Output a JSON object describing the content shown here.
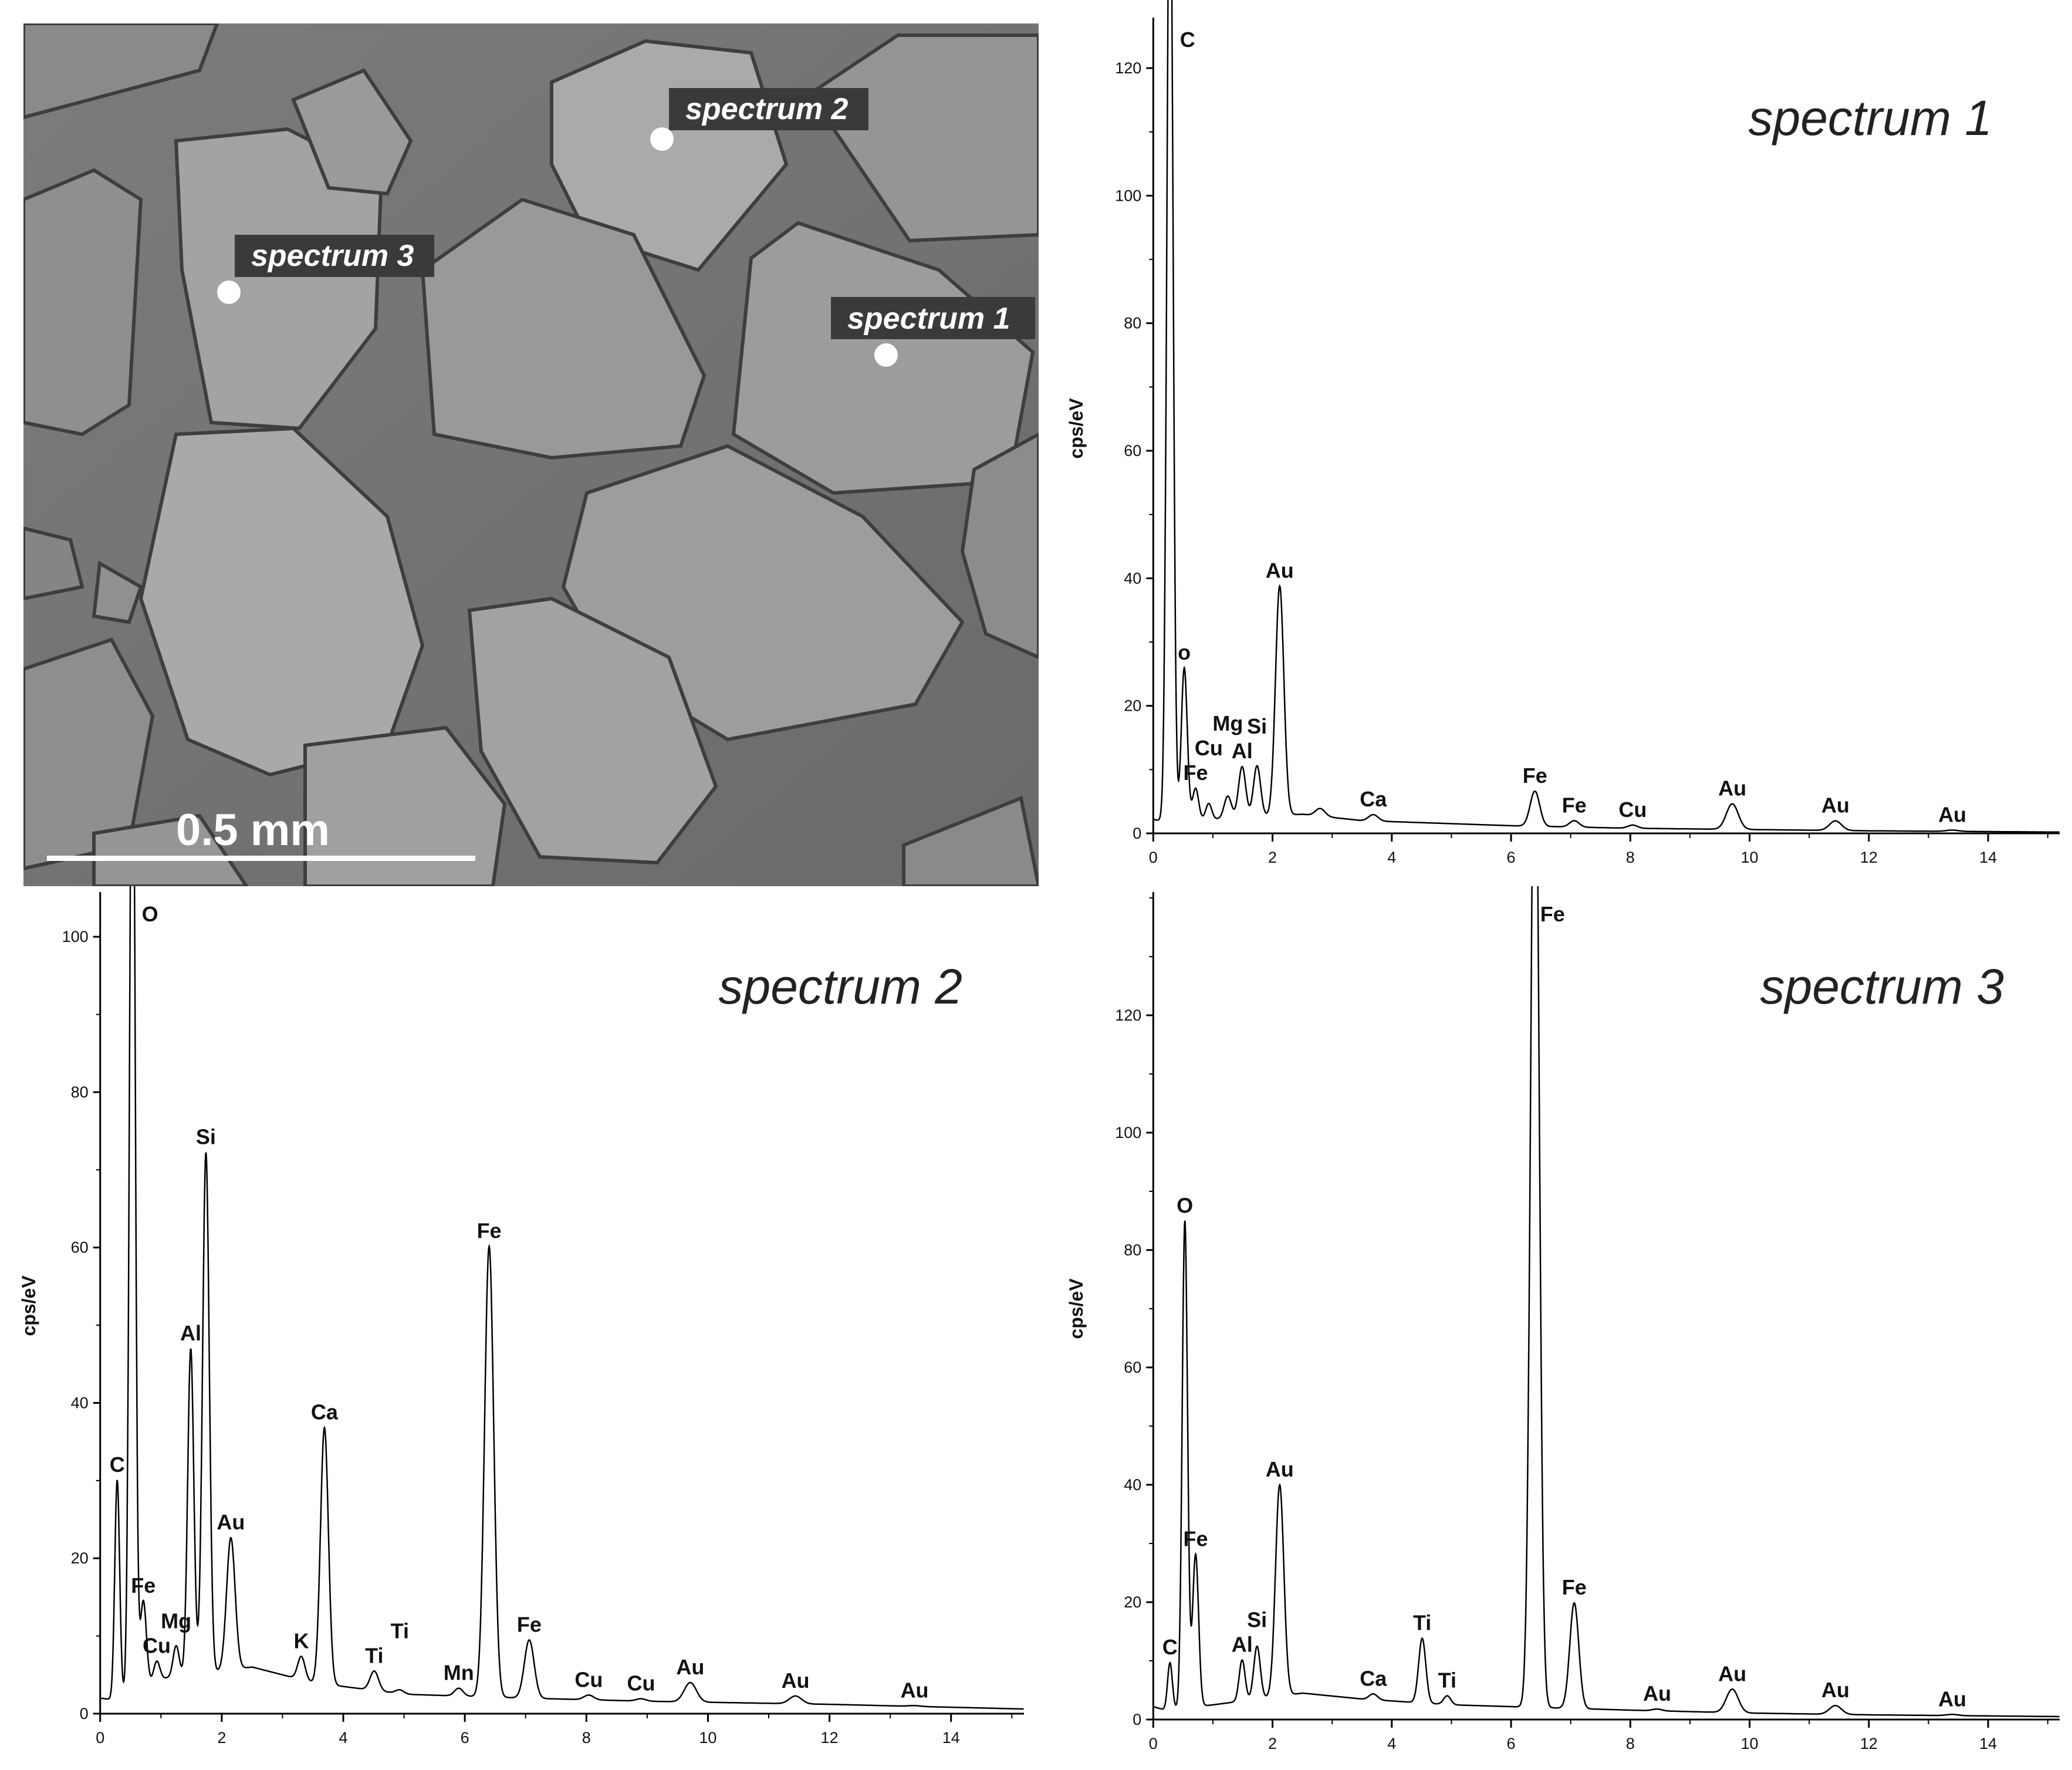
{
  "sem": {
    "scale_bar_label": "0.5 mm",
    "spots": [
      {
        "label": "spectrum 2"
      },
      {
        "label": "spectrum 3"
      },
      {
        "label": "spectrum 1"
      }
    ]
  },
  "chart_data": [
    {
      "type": "line",
      "title": "spectrum 1",
      "xlabel": "",
      "ylabel": "cps/eV",
      "xlim": [
        -0.2,
        15.2
      ],
      "ylim": [
        0,
        127
      ],
      "xticks": [
        0,
        2,
        4,
        6,
        8,
        10,
        12,
        14
      ],
      "yticks": [
        0,
        20,
        40,
        60,
        80,
        100,
        120
      ],
      "baseline": [
        [
          0.0,
          2.2
        ],
        [
          0.2,
          1.8
        ],
        [
          2.5,
          3.0
        ],
        [
          3.5,
          2.0
        ],
        [
          6,
          1.2
        ],
        [
          8,
          0.8
        ],
        [
          10,
          0.6
        ],
        [
          12,
          0.4
        ],
        [
          15.2,
          0.2
        ]
      ],
      "peaks": [
        {
          "x": 0.28,
          "y": 160,
          "w": 0.05,
          "label": "C"
        },
        {
          "x": 0.52,
          "y": 24,
          "w": 0.05,
          "label": "o"
        },
        {
          "x": 0.71,
          "y": 5,
          "w": 0.05,
          "label": "Fe"
        },
        {
          "x": 0.93,
          "y": 2.5,
          "w": 0.05,
          "label": "Cu"
        },
        {
          "x": 1.25,
          "y": 3.5,
          "w": 0.06,
          "label": "Mg"
        },
        {
          "x": 1.49,
          "y": 8,
          "w": 0.06,
          "label": "Al"
        },
        {
          "x": 1.74,
          "y": 8,
          "w": 0.06,
          "label": "Si"
        },
        {
          "x": 2.12,
          "y": 36,
          "w": 0.07,
          "label": "Au"
        },
        {
          "x": 2.8,
          "y": 1.2,
          "w": 0.08,
          "label": ""
        },
        {
          "x": 3.69,
          "y": 1.0,
          "w": 0.08,
          "label": "Ca"
        },
        {
          "x": 6.4,
          "y": 5.5,
          "w": 0.08,
          "label": "Fe"
        },
        {
          "x": 7.06,
          "y": 1.0,
          "w": 0.08,
          "label": "Fe"
        },
        {
          "x": 8.04,
          "y": 0.5,
          "w": 0.08,
          "label": "Cu"
        },
        {
          "x": 9.71,
          "y": 4,
          "w": 0.1,
          "label": "Au"
        },
        {
          "x": 11.44,
          "y": 1.5,
          "w": 0.1,
          "label": "Au"
        },
        {
          "x": 13.4,
          "y": 0.2,
          "w": 0.1,
          "label": "Au"
        }
      ]
    },
    {
      "type": "line",
      "title": "spectrum 2",
      "xlabel": "",
      "ylabel": "cps/eV",
      "xlim": [
        -0.2,
        15.2
      ],
      "ylim": [
        0,
        105
      ],
      "xticks": [
        0,
        2,
        4,
        6,
        8,
        10,
        12,
        14
      ],
      "yticks": [
        0,
        20,
        40,
        60,
        80,
        100
      ],
      "baseline": [
        [
          0.0,
          2.0
        ],
        [
          0.2,
          1.8
        ],
        [
          1.0,
          4.5
        ],
        [
          2.5,
          6.0
        ],
        [
          3.5,
          4.0
        ],
        [
          5,
          2.5
        ],
        [
          7,
          2.0
        ],
        [
          9,
          1.6
        ],
        [
          12,
          1.2
        ],
        [
          15.2,
          0.6
        ]
      ],
      "peaks": [
        {
          "x": 0.28,
          "y": 28,
          "w": 0.04,
          "label": "C"
        },
        {
          "x": 0.53,
          "y": 140,
          "w": 0.045,
          "label": "O"
        },
        {
          "x": 0.71,
          "y": 11,
          "w": 0.05,
          "label": "Fe"
        },
        {
          "x": 0.93,
          "y": 2.5,
          "w": 0.05,
          "label": "Cu"
        },
        {
          "x": 1.25,
          "y": 4,
          "w": 0.05,
          "label": "Mg"
        },
        {
          "x": 1.49,
          "y": 42,
          "w": 0.05,
          "label": "Al"
        },
        {
          "x": 1.74,
          "y": 67,
          "w": 0.055,
          "label": "Si"
        },
        {
          "x": 2.15,
          "y": 17,
          "w": 0.07,
          "label": "Au"
        },
        {
          "x": 3.31,
          "y": 3,
          "w": 0.06,
          "label": "K"
        },
        {
          "x": 3.69,
          "y": 33,
          "w": 0.065,
          "label": "Ca"
        },
        {
          "x": 4.51,
          "y": 2.5,
          "w": 0.07,
          "label": "Ti"
        },
        {
          "x": 4.93,
          "y": 0.5,
          "w": 0.07,
          "label": "Ti"
        },
        {
          "x": 5.9,
          "y": 1.0,
          "w": 0.07,
          "label": "Mn"
        },
        {
          "x": 6.4,
          "y": 58,
          "w": 0.075,
          "label": "Fe"
        },
        {
          "x": 7.06,
          "y": 7.5,
          "w": 0.08,
          "label": "Fe"
        },
        {
          "x": 8.04,
          "y": 0.6,
          "w": 0.08,
          "label": "Cu"
        },
        {
          "x": 8.9,
          "y": 0.3,
          "w": 0.08,
          "label": "Cu"
        },
        {
          "x": 9.71,
          "y": 2.5,
          "w": 0.1,
          "label": "Au"
        },
        {
          "x": 11.44,
          "y": 1.0,
          "w": 0.1,
          "label": "Au"
        },
        {
          "x": 13.4,
          "y": 0.1,
          "w": 0.1,
          "label": "Au"
        }
      ]
    },
    {
      "type": "line",
      "title": "spectrum 3",
      "xlabel": "",
      "ylabel": "cps/eV",
      "xlim": [
        -0.2,
        15.2
      ],
      "ylim": [
        0,
        140
      ],
      "xticks": [
        0,
        2,
        4,
        6,
        8,
        10,
        12,
        14
      ],
      "yticks": [
        0,
        20,
        40,
        60,
        80,
        100,
        120
      ],
      "baseline": [
        [
          0.0,
          2.2
        ],
        [
          0.2,
          1.6
        ],
        [
          1.0,
          2.5
        ],
        [
          2.5,
          4.5
        ],
        [
          3.5,
          3.5
        ],
        [
          5,
          2.5
        ],
        [
          6,
          2.2
        ],
        [
          8,
          1.6
        ],
        [
          10,
          1.1
        ],
        [
          12,
          0.8
        ],
        [
          15.2,
          0.5
        ]
      ],
      "peaks": [
        {
          "x": 0.28,
          "y": 8,
          "w": 0.04,
          "label": "C"
        },
        {
          "x": 0.53,
          "y": 83,
          "w": 0.045,
          "label": "O"
        },
        {
          "x": 0.71,
          "y": 26,
          "w": 0.05,
          "label": "Fe"
        },
        {
          "x": 1.49,
          "y": 7,
          "w": 0.05,
          "label": "Al"
        },
        {
          "x": 1.74,
          "y": 9,
          "w": 0.055,
          "label": "Si"
        },
        {
          "x": 2.12,
          "y": 36,
          "w": 0.07,
          "label": "Au"
        },
        {
          "x": 3.69,
          "y": 1.0,
          "w": 0.07,
          "label": "Ca"
        },
        {
          "x": 4.51,
          "y": 11,
          "w": 0.06,
          "label": "Ti"
        },
        {
          "x": 4.93,
          "y": 1.5,
          "w": 0.06,
          "label": "Ti"
        },
        {
          "x": 6.4,
          "y": 180,
          "w": 0.07,
          "label": "Fe"
        },
        {
          "x": 7.06,
          "y": 18,
          "w": 0.075,
          "label": "Fe"
        },
        {
          "x": 8.45,
          "y": 0.3,
          "w": 0.08,
          "label": "Au"
        },
        {
          "x": 9.71,
          "y": 4,
          "w": 0.1,
          "label": "Au"
        },
        {
          "x": 11.44,
          "y": 1.5,
          "w": 0.1,
          "label": "Au"
        },
        {
          "x": 13.4,
          "y": 0.2,
          "w": 0.1,
          "label": "Au"
        }
      ]
    }
  ]
}
